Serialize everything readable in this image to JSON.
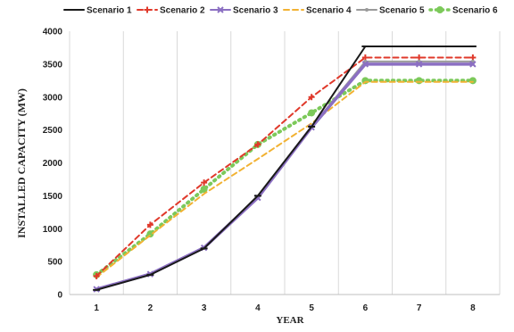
{
  "chart_data": {
    "type": "line",
    "title": "",
    "xlabel": "YEAR",
    "ylabel": "INSTALLED CAPACITY (MW)",
    "x": [
      1,
      2,
      3,
      4,
      5,
      6,
      7,
      8
    ],
    "ylim": [
      0,
      4000
    ],
    "yticks": [
      0,
      500,
      1000,
      1500,
      2000,
      2500,
      3000,
      3500,
      4000
    ],
    "grid": "vertical",
    "legend_position": "top",
    "series": [
      {
        "name": "Scenario 1",
        "color": "#1a1a1a",
        "dash": "solid",
        "marker": "dash",
        "values": [
          70,
          300,
          700,
          1500,
          2550,
          3770,
          3770,
          3770
        ]
      },
      {
        "name": "Scenario 2",
        "color": "#e0392b",
        "dash": "dashed",
        "marker": "cross",
        "values": [
          280,
          1060,
          1700,
          2280,
          3000,
          3600,
          3600,
          3600
        ]
      },
      {
        "name": "Scenario 3",
        "color": "#8b6fc2",
        "dash": "solid",
        "marker": "x",
        "values": [
          80,
          310,
          710,
          1470,
          2540,
          3500,
          3500,
          3500
        ]
      },
      {
        "name": "Scenario 4",
        "color": "#f2b233",
        "dash": "dashed",
        "marker": "none",
        "values": [
          260,
          900,
          1530,
          2060,
          2600,
          3230,
          3230,
          3230
        ]
      },
      {
        "name": "Scenario 5",
        "color": "#9a9a9a",
        "dash": "solid",
        "marker": "dot",
        "values": [
          75,
          305,
          705,
          1480,
          2545,
          3540,
          3540,
          3540
        ]
      },
      {
        "name": "Scenario 6",
        "color": "#7cc95a",
        "dash": "dotted",
        "marker": "circle",
        "values": [
          300,
          920,
          1600,
          2280,
          2760,
          3250,
          3250,
          3250
        ]
      }
    ]
  }
}
